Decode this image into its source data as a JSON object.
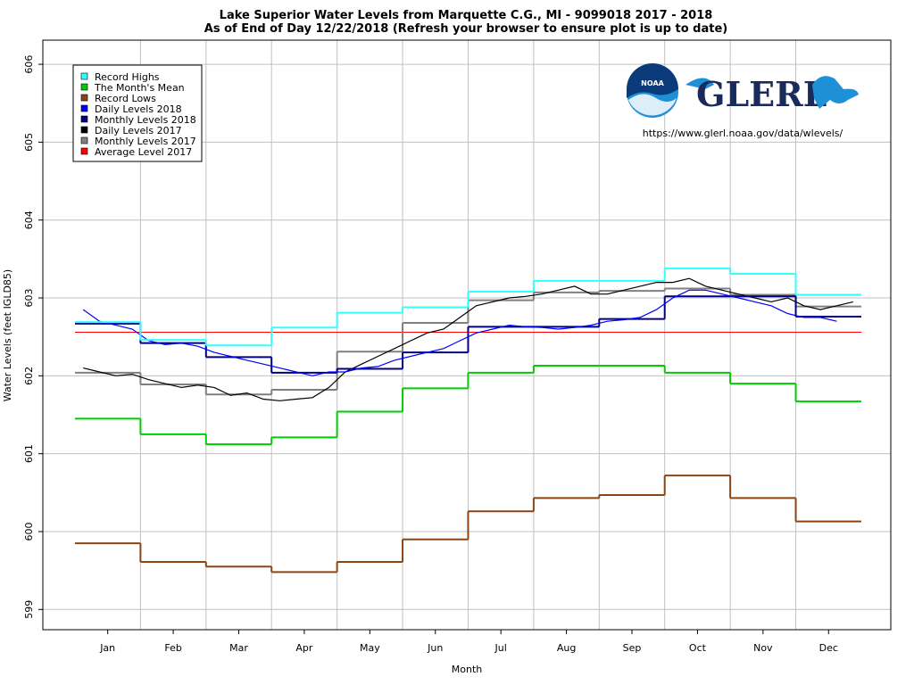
{
  "chart_data": {
    "type": "line",
    "title": "Lake Superior Water Levels from Marquette C.G., MI - 9099018 2017 - 2018",
    "subtitle": "As of End of Day 12/22/2018 (Refresh your browser to ensure plot is up to date)",
    "x_label": "Month",
    "y_label": "Water Levels (feet IGLD85)",
    "url": "https://www.glerl.noaa.gov/data/wlevels/",
    "xlim": [
      -0.49,
      12.45
    ],
    "ylim": [
      598.74,
      606.31
    ],
    "xticks": [
      {
        "value": 0.5,
        "label": "Jan"
      },
      {
        "value": 1.5,
        "label": "Feb"
      },
      {
        "value": 2.5,
        "label": "Mar"
      },
      {
        "value": 3.5,
        "label": "Apr"
      },
      {
        "value": 4.5,
        "label": "May"
      },
      {
        "value": 5.5,
        "label": "Jun"
      },
      {
        "value": 6.5,
        "label": "Jul"
      },
      {
        "value": 7.5,
        "label": "Aug"
      },
      {
        "value": 8.5,
        "label": "Sep"
      },
      {
        "value": 9.5,
        "label": "Oct"
      },
      {
        "value": 10.5,
        "label": "Nov"
      },
      {
        "value": 11.5,
        "label": "Dec"
      }
    ],
    "xgrid": [
      1,
      2,
      3,
      4,
      5,
      6,
      7,
      8,
      9,
      10,
      11
    ],
    "yticks": [
      599,
      600,
      601,
      602,
      603,
      604,
      605,
      606
    ],
    "grid": true,
    "legend": "upper left",
    "series": [
      {
        "name": "Record Highs",
        "color": "#33ffff",
        "style": "step",
        "x": [
          0,
          1,
          2,
          3,
          4,
          5,
          6,
          7,
          8,
          9,
          10,
          11
        ],
        "values": [
          602.69,
          602.46,
          602.39,
          602.62,
          602.81,
          602.88,
          603.08,
          603.22,
          603.22,
          603.38,
          603.31,
          603.04
        ]
      },
      {
        "name": "The Month's Mean",
        "color": "#00cc00",
        "style": "step",
        "x": [
          0,
          1,
          2,
          3,
          4,
          5,
          6,
          7,
          8,
          9,
          10,
          11
        ],
        "values": [
          601.45,
          601.25,
          601.12,
          601.21,
          601.54,
          601.84,
          602.04,
          602.13,
          602.13,
          602.04,
          601.9,
          601.67
        ]
      },
      {
        "name": "Record Lows",
        "color": "#8b4513",
        "style": "step",
        "x": [
          0,
          1,
          2,
          3,
          4,
          5,
          6,
          7,
          8,
          9,
          10,
          11
        ],
        "values": [
          599.85,
          599.61,
          599.55,
          599.48,
          599.61,
          599.9,
          600.26,
          600.43,
          600.47,
          600.72,
          600.43,
          600.13
        ]
      },
      {
        "name": "Daily Levels 2018",
        "color": "#0000ff",
        "style": "line",
        "x": [
          0.125,
          0.375,
          0.625,
          0.875,
          1.125,
          1.375,
          1.625,
          1.875,
          2.125,
          2.375,
          2.625,
          2.875,
          3.125,
          3.375,
          3.625,
          3.875,
          4.125,
          4.375,
          4.625,
          4.875,
          5.125,
          5.375,
          5.625,
          5.875,
          6.125,
          6.375,
          6.625,
          6.875,
          7.125,
          7.375,
          7.625,
          7.875,
          8.125,
          8.375,
          8.625,
          8.875,
          9.125,
          9.375,
          9.625,
          9.875,
          10.125,
          10.375,
          10.625,
          10.875,
          11.125,
          11.375,
          11.625,
          11.875
        ],
        "values": [
          602.85,
          602.7,
          602.65,
          602.6,
          602.45,
          602.4,
          602.42,
          602.38,
          602.3,
          602.25,
          602.2,
          602.15,
          602.1,
          602.05,
          602.0,
          602.05,
          602.05,
          602.1,
          602.12,
          602.2,
          602.25,
          602.3,
          602.35,
          602.45,
          602.55,
          602.6,
          602.65,
          602.63,
          602.62,
          602.6,
          602.62,
          602.65,
          602.7,
          602.72,
          602.75,
          602.85,
          603.0,
          603.1,
          603.1,
          603.05,
          603.0,
          602.95,
          602.9,
          602.8,
          602.75,
          602.75,
          602.7,
          null
        ]
      },
      {
        "name": "Monthly Levels 2018",
        "color": "#000080",
        "style": "step",
        "x": [
          0,
          1,
          2,
          3,
          4,
          5,
          6,
          7,
          8,
          9,
          10,
          11
        ],
        "values": [
          602.67,
          602.42,
          602.24,
          602.04,
          602.09,
          602.3,
          602.63,
          602.63,
          602.73,
          603.02,
          603.02,
          602.76
        ]
      },
      {
        "name": "Daily Levels 2017",
        "color": "#000000",
        "style": "line",
        "x": [
          0.125,
          0.375,
          0.625,
          0.875,
          1.125,
          1.375,
          1.625,
          1.875,
          2.125,
          2.375,
          2.625,
          2.875,
          3.125,
          3.375,
          3.625,
          3.875,
          4.125,
          4.375,
          4.625,
          4.875,
          5.125,
          5.375,
          5.625,
          5.875,
          6.125,
          6.375,
          6.625,
          6.875,
          7.125,
          7.375,
          7.625,
          7.875,
          8.125,
          8.375,
          8.625,
          8.875,
          9.125,
          9.375,
          9.625,
          9.875,
          10.125,
          10.375,
          10.625,
          10.875,
          11.125,
          11.375,
          11.625,
          11.875
        ],
        "values": [
          602.1,
          602.05,
          602.0,
          602.02,
          601.95,
          601.9,
          601.85,
          601.88,
          601.85,
          601.75,
          601.78,
          601.7,
          601.68,
          601.7,
          601.72,
          601.85,
          602.05,
          602.15,
          602.25,
          602.35,
          602.45,
          602.55,
          602.6,
          602.75,
          602.9,
          602.95,
          603.0,
          603.02,
          603.05,
          603.1,
          603.15,
          603.05,
          603.05,
          603.1,
          603.15,
          603.2,
          603.2,
          603.25,
          603.15,
          603.1,
          603.05,
          603.0,
          602.95,
          603.0,
          602.9,
          602.85,
          602.9,
          602.95
        ]
      },
      {
        "name": "Monthly Levels 2017",
        "color": "#808080",
        "style": "step",
        "x": [
          0,
          1,
          2,
          3,
          4,
          5,
          6,
          7,
          8,
          9,
          10,
          11
        ],
        "values": [
          602.04,
          601.89,
          601.76,
          601.82,
          602.31,
          602.68,
          602.97,
          603.07,
          603.09,
          603.12,
          603.04,
          602.89
        ]
      },
      {
        "name": "Average Level 2017",
        "color": "#ff0000",
        "style": "hline",
        "x": [
          0
        ],
        "values": [
          602.56
        ]
      }
    ]
  },
  "logos": {
    "noaa": "NOAA",
    "glerl": "GLERL"
  }
}
